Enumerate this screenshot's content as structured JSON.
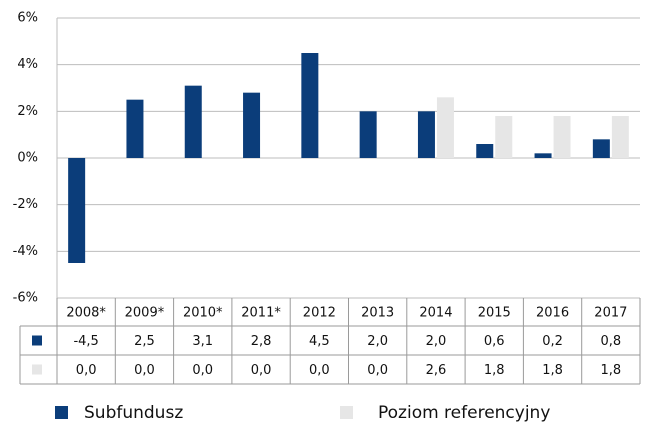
{
  "chart_data": {
    "type": "bar",
    "categories": [
      "2008*",
      "2009*",
      "2010*",
      "2011*",
      "2012",
      "2013",
      "2014",
      "2015",
      "2016",
      "2017"
    ],
    "series": [
      {
        "name": "Subfundusz",
        "color": "#0b3d7a",
        "values": [
          -4.5,
          2.5,
          3.1,
          2.8,
          4.5,
          2.0,
          2.0,
          0.6,
          0.2,
          0.8
        ],
        "value_labels": [
          "-4,5",
          "2,5",
          "3,1",
          "2,8",
          "4,5",
          "2,0",
          "2,0",
          "0,6",
          "0,2",
          "0,8"
        ]
      },
      {
        "name": "Poziom referencyjny",
        "color": "#e6e6e6",
        "values": [
          0.0,
          0.0,
          0.0,
          0.0,
          0.0,
          0.0,
          2.6,
          1.8,
          1.8,
          1.8
        ],
        "value_labels": [
          "0,0",
          "0,0",
          "0,0",
          "0,0",
          "0,0",
          "0,0",
          "2,6",
          "1,8",
          "1,8",
          "1,8"
        ]
      }
    ],
    "ylim": [
      -6,
      6
    ],
    "yticks": [
      {
        "value": -6,
        "label": "-6%"
      },
      {
        "value": -4,
        "label": "-4%"
      },
      {
        "value": -2,
        "label": "-2%"
      },
      {
        "value": 0,
        "label": "0%"
      },
      {
        "value": 2,
        "label": "2%"
      },
      {
        "value": 4,
        "label": "4%"
      },
      {
        "value": 6,
        "label": "6%"
      }
    ],
    "grid": true
  }
}
